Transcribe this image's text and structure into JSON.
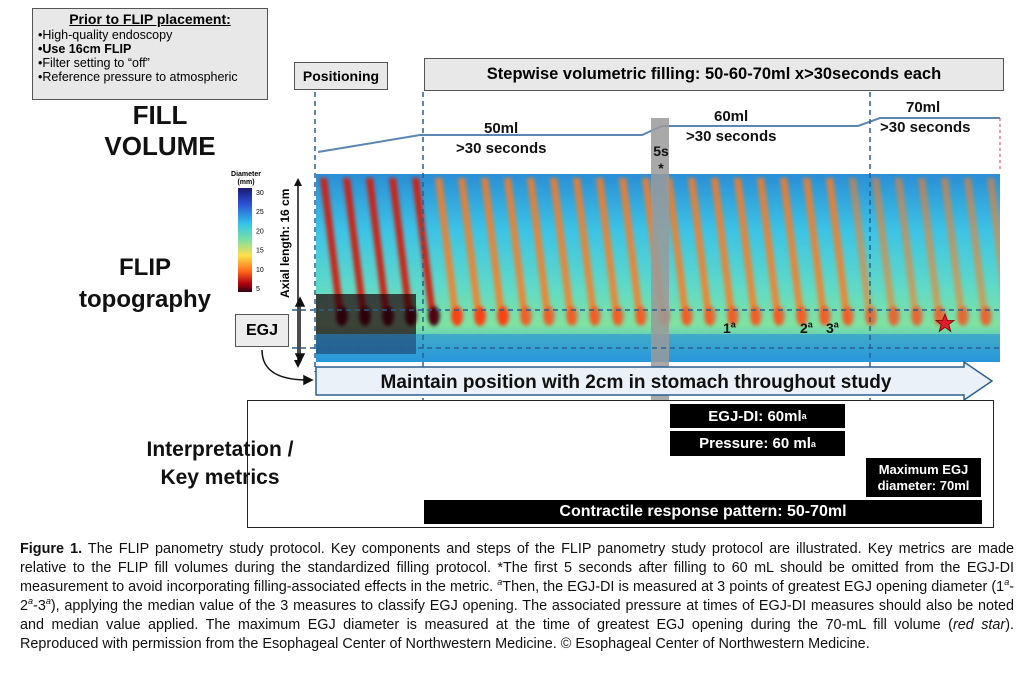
{
  "prior": {
    "title": "Prior to FLIP placement:",
    "items": [
      "High-quality endoscopy",
      "Use 16cm FLIP",
      "Filter setting to “off”",
      "Reference pressure to atmospheric"
    ]
  },
  "phases": {
    "positioning": "Positioning",
    "stepwise": "Stepwise volumetric filling: 50-60-70ml x>30seconds each"
  },
  "row_labels": {
    "fill_volume_1": "FILL",
    "fill_volume_2": "VOLUME",
    "flip_topography_1": "FLIP",
    "flip_topography_2": "topography",
    "egj": "EGJ",
    "interpretation_1": "Interpretation /",
    "interpretation_2": "Key metrics"
  },
  "fill_levels": [
    {
      "volume": "50ml",
      "duration": ">30 seconds"
    },
    {
      "volume": "60ml",
      "duration": ">30 seconds"
    },
    {
      "volume": "70ml",
      "duration": ">30 seconds"
    }
  ],
  "five_s": "5s",
  "five_s_star": "*",
  "axial_length": "Axial length: 16 cm",
  "legend": {
    "title_1": "Diameter",
    "title_2": "(mm)",
    "ticks": [
      "30",
      "25",
      "20",
      "15",
      "10",
      "5"
    ]
  },
  "markers": {
    "m1": "1",
    "m2": "2",
    "m3": "3",
    "sup": "a"
  },
  "maintain": "Maintain position with 2cm in stomach throughout study",
  "metrics": {
    "egj_di": "EGJ-DI: 60ml",
    "pressure": "Pressure: 60 ml",
    "sup": "a",
    "max_egj_1": "Maximum EGJ",
    "max_egj_2": "diameter: 70ml",
    "contractile": "Contractile response pattern: 50-70ml"
  },
  "caption": {
    "label": "Figure 1.",
    "p1": " The FLIP panometry study protocol. Key components and steps of the FLIP panometry study protocol are illustrated. Key metrics are made relative to the FLIP fill volumes during the standardized filling protocol. *The first 5 seconds after filling to 60 mL should be omitted from the EGJ-DI measurement to avoid incorporating filling-associated effects in the metric. ",
    "sup_a": "a",
    "p2": "Then, the EGJ-DI is measured at 3 points of greatest EGJ opening diameter (1",
    "p3": "-2",
    "p4": "-3",
    "p5": "), applying the median value of the 3 measures to classify EGJ opening. The associated pressure at times of EGJ-DI measures should also be noted and median value applied. The maximum EGJ diameter is measured at the time of greatest EGJ opening during the 70-mL fill volume (",
    "red_star": "red star",
    "p6": "). Reproduced with permission from the Esophageal Center of Northwestern Medicine. © Esophageal Center of Northwestern Medicine."
  }
}
